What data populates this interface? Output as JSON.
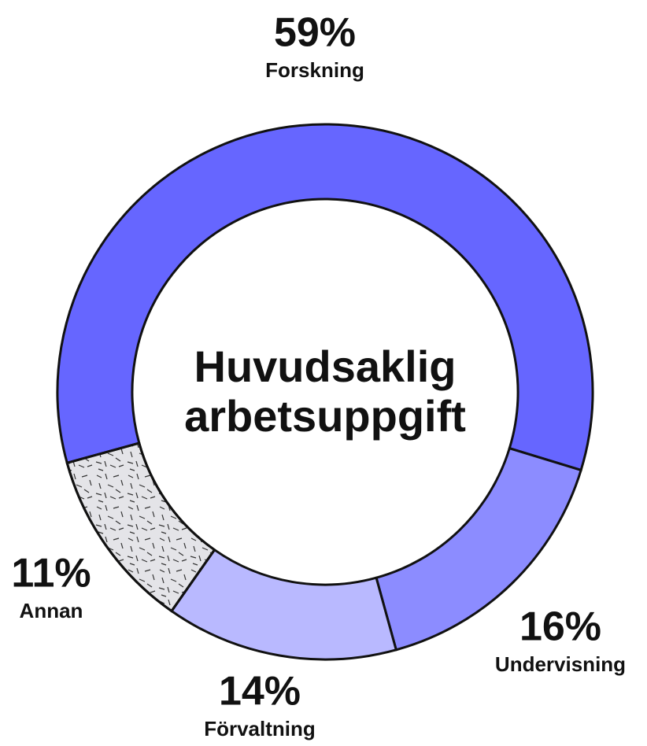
{
  "chart_data": {
    "type": "donut",
    "title": "Huvudsaklig arbetsuppgift",
    "categories": [
      "Forskning",
      "Undervisning",
      "Förvaltning",
      "Annan"
    ],
    "values": [
      59,
      16,
      14,
      11
    ],
    "value_labels": [
      "59%",
      "16%",
      "14%",
      "11%"
    ],
    "colors": [
      "#6666ff",
      "#8c8cff",
      "#b9b9ff",
      "#e4e4e8"
    ]
  }
}
